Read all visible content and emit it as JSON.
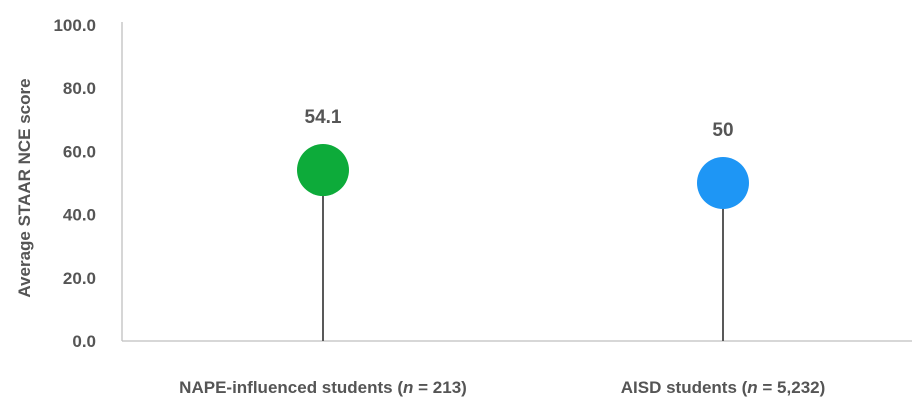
{
  "chart_data": {
    "type": "lollipop",
    "title": "",
    "ylabel": "Average STAAR NCE score",
    "xlabel": "",
    "ylim": [
      0,
      100
    ],
    "yticks": [
      "0.0",
      "20.0",
      "40.0",
      "60.0",
      "80.0",
      "100.0"
    ],
    "grid": false,
    "legend": "none",
    "categories": [
      {
        "prefix": "NAPE-influenced students (",
        "n_symbol": "n",
        "suffix": " = 213)"
      },
      {
        "prefix": "AISD students (",
        "n_symbol": "n",
        "suffix": " = 5,232)"
      }
    ],
    "values": [
      54.1,
      50
    ],
    "value_labels": [
      "54.1",
      "50"
    ],
    "colors": [
      "#0dab3a",
      "#1e96f5"
    ]
  }
}
